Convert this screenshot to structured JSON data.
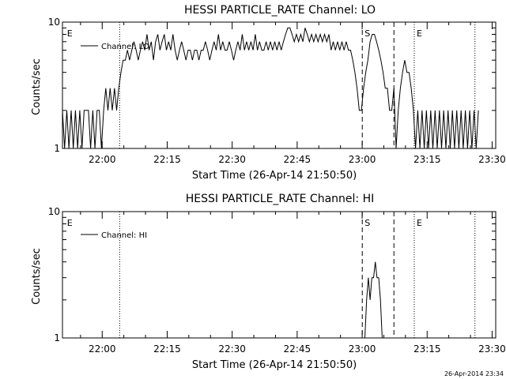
{
  "footer": {
    "timestamp": "26-Apr-2014 23:34"
  },
  "chart_data": [
    {
      "type": "line",
      "title": "HESSI PARTICLE_RATE Channel: LO",
      "xlabel": "Start Time (26-Apr-14 21:50:50)",
      "ylabel": "Counts/sec",
      "y_scale": "log",
      "ylim": [
        1,
        10
      ],
      "y_ticks": [
        {
          "value": 1,
          "label": "1"
        },
        {
          "value": 10,
          "label": "10"
        }
      ],
      "x_unit": "minutes after 21:50:50",
      "xlim": [
        0,
        100
      ],
      "x_ticks": [
        {
          "value": 9.17,
          "label": "22:00"
        },
        {
          "value": 24.17,
          "label": "22:15"
        },
        {
          "value": 39.17,
          "label": "22:30"
        },
        {
          "value": 54.17,
          "label": "22:45"
        },
        {
          "value": 69.17,
          "label": "23:00"
        },
        {
          "value": 84.17,
          "label": "23:15"
        },
        {
          "value": 99.17,
          "label": "23:30"
        }
      ],
      "legend": {
        "label": "Channel: LO",
        "position": "top-left"
      },
      "markers": [
        {
          "x": 0.5,
          "label": "E",
          "style": "none"
        },
        {
          "x": 13.2,
          "label": "",
          "style": "dotted"
        },
        {
          "x": 69.2,
          "label": "S",
          "style": "dashed"
        },
        {
          "x": 76.5,
          "label": "",
          "style": "dashed"
        },
        {
          "x": 81.2,
          "label": "E",
          "style": "dotted"
        },
        {
          "x": 95.2,
          "label": "",
          "style": "dotted"
        }
      ],
      "series": [
        {
          "name": "Channel: LO",
          "points": [
            [
              0,
              2
            ],
            [
              0.5,
              1
            ],
            [
              1,
              2
            ],
            [
              1.5,
              1
            ],
            [
              2,
              2
            ],
            [
              2.5,
              1
            ],
            [
              3,
              2
            ],
            [
              3.5,
              1
            ],
            [
              4,
              2
            ],
            [
              4.5,
              1
            ],
            [
              5,
              2
            ],
            [
              5.5,
              2
            ],
            [
              6,
              2
            ],
            [
              6.5,
              1
            ],
            [
              7,
              2
            ],
            [
              7.5,
              1
            ],
            [
              8,
              2
            ],
            [
              8.5,
              2
            ],
            [
              9,
              1
            ],
            [
              9.5,
              2
            ],
            [
              10,
              3
            ],
            [
              10.5,
              2
            ],
            [
              11,
              3
            ],
            [
              11.5,
              2
            ],
            [
              12,
              3
            ],
            [
              12.5,
              2
            ],
            [
              13,
              3
            ],
            [
              13.5,
              4
            ],
            [
              14,
              5
            ],
            [
              14.5,
              5
            ],
            [
              15,
              6
            ],
            [
              15.5,
              5
            ],
            [
              16,
              6
            ],
            [
              16.5,
              7
            ],
            [
              17,
              6
            ],
            [
              17.5,
              5
            ],
            [
              18,
              6
            ],
            [
              18.5,
              7
            ],
            [
              19,
              6
            ],
            [
              19.5,
              8
            ],
            [
              20,
              6
            ],
            [
              20.5,
              7
            ],
            [
              21,
              5
            ],
            [
              21.5,
              7
            ],
            [
              22,
              8
            ],
            [
              22.5,
              6
            ],
            [
              23,
              7
            ],
            [
              23.5,
              8
            ],
            [
              24,
              6
            ],
            [
              24.5,
              7
            ],
            [
              25,
              6
            ],
            [
              25.5,
              8
            ],
            [
              26,
              6
            ],
            [
              26.5,
              5
            ],
            [
              27,
              6
            ],
            [
              27.5,
              7
            ],
            [
              28,
              6
            ],
            [
              28.5,
              5
            ],
            [
              29,
              6
            ],
            [
              29.5,
              6
            ],
            [
              30,
              5
            ],
            [
              30.5,
              6
            ],
            [
              31,
              6
            ],
            [
              31.5,
              5
            ],
            [
              32,
              6
            ],
            [
              32.5,
              6
            ],
            [
              33,
              7
            ],
            [
              33.5,
              6
            ],
            [
              34,
              5
            ],
            [
              34.5,
              6
            ],
            [
              35,
              7
            ],
            [
              35.5,
              6
            ],
            [
              36,
              8
            ],
            [
              36.5,
              6
            ],
            [
              37,
              7
            ],
            [
              37.5,
              6
            ],
            [
              38,
              6
            ],
            [
              38.5,
              7
            ],
            [
              39,
              6
            ],
            [
              39.5,
              5
            ],
            [
              40,
              6
            ],
            [
              40.5,
              7
            ],
            [
              41,
              6
            ],
            [
              41.5,
              8
            ],
            [
              42,
              6
            ],
            [
              42.5,
              7
            ],
            [
              43,
              6
            ],
            [
              43.5,
              7
            ],
            [
              44,
              6
            ],
            [
              44.5,
              8
            ],
            [
              45,
              6
            ],
            [
              45.5,
              7
            ],
            [
              46,
              6
            ],
            [
              46.5,
              6
            ],
            [
              47,
              7
            ],
            [
              47.5,
              6
            ],
            [
              48,
              7
            ],
            [
              48.5,
              6
            ],
            [
              49,
              7
            ],
            [
              49.5,
              6
            ],
            [
              50,
              7
            ],
            [
              50.5,
              6
            ],
            [
              51,
              7
            ],
            [
              51.5,
              8
            ],
            [
              52,
              9
            ],
            [
              52.5,
              9
            ],
            [
              53,
              8
            ],
            [
              53.5,
              7
            ],
            [
              54,
              8
            ],
            [
              54.5,
              7
            ],
            [
              55,
              8
            ],
            [
              55.5,
              7
            ],
            [
              56,
              9
            ],
            [
              56.5,
              8
            ],
            [
              57,
              7
            ],
            [
              57.5,
              8
            ],
            [
              58,
              7
            ],
            [
              58.5,
              8
            ],
            [
              59,
              7
            ],
            [
              59.5,
              8
            ],
            [
              60,
              7
            ],
            [
              60.5,
              8
            ],
            [
              61,
              7
            ],
            [
              61.5,
              8
            ],
            [
              62,
              6
            ],
            [
              62.5,
              7
            ],
            [
              63,
              6
            ],
            [
              63.5,
              7
            ],
            [
              64,
              6
            ],
            [
              64.5,
              7
            ],
            [
              65,
              6
            ],
            [
              65.5,
              7
            ],
            [
              66,
              6
            ],
            [
              66.5,
              6
            ],
            [
              67,
              5
            ],
            [
              67.5,
              4
            ],
            [
              68,
              3
            ],
            [
              68.5,
              2
            ],
            [
              69,
              2
            ],
            [
              69.5,
              3
            ],
            [
              70,
              4
            ],
            [
              70.5,
              5
            ],
            [
              71,
              7
            ],
            [
              71.5,
              8
            ],
            [
              72,
              8
            ],
            [
              72.5,
              7
            ],
            [
              73,
              6
            ],
            [
              73.5,
              5
            ],
            [
              74,
              4
            ],
            [
              74.5,
              3
            ],
            [
              75,
              3
            ],
            [
              75.5,
              2
            ],
            [
              76,
              2
            ],
            [
              76.5,
              3
            ],
            [
              77,
              1
            ],
            [
              77.5,
              2
            ],
            [
              78,
              3
            ],
            [
              78.5,
              4
            ],
            [
              79,
              5
            ],
            [
              79.5,
              4
            ],
            [
              80,
              4
            ],
            [
              80.5,
              3
            ],
            [
              81,
              2
            ],
            [
              81.5,
              1
            ],
            [
              82,
              2
            ],
            [
              82.5,
              1
            ],
            [
              83,
              2
            ],
            [
              83.5,
              1
            ],
            [
              84,
              2
            ],
            [
              84.5,
              1
            ],
            [
              85,
              2
            ],
            [
              85.5,
              1
            ],
            [
              86,
              2
            ],
            [
              86.5,
              1
            ],
            [
              87,
              2
            ],
            [
              87.5,
              1
            ],
            [
              88,
              2
            ],
            [
              88.5,
              1
            ],
            [
              89,
              2
            ],
            [
              89.5,
              1
            ],
            [
              90,
              2
            ],
            [
              90.5,
              1
            ],
            [
              91,
              2
            ],
            [
              91.5,
              1
            ],
            [
              92,
              2
            ],
            [
              92.5,
              1
            ],
            [
              93,
              2
            ],
            [
              93.5,
              1
            ],
            [
              94,
              2
            ],
            [
              94.5,
              1
            ],
            [
              95,
              2
            ],
            [
              95.5,
              1
            ],
            [
              96,
              2
            ]
          ]
        }
      ]
    },
    {
      "type": "line",
      "title": "HESSI PARTICLE_RATE Channel: HI",
      "xlabel": "Start Time (26-Apr-14 21:50:50)",
      "ylabel": "Counts/sec",
      "y_scale": "log",
      "ylim": [
        1,
        10
      ],
      "y_ticks": [
        {
          "value": 1,
          "label": "1"
        },
        {
          "value": 10,
          "label": "10"
        }
      ],
      "x_unit": "minutes after 21:50:50",
      "xlim": [
        0,
        100
      ],
      "x_ticks": [
        {
          "value": 9.17,
          "label": "22:00"
        },
        {
          "value": 24.17,
          "label": "22:15"
        },
        {
          "value": 39.17,
          "label": "22:30"
        },
        {
          "value": 54.17,
          "label": "22:45"
        },
        {
          "value": 69.17,
          "label": "23:00"
        },
        {
          "value": 84.17,
          "label": "23:15"
        },
        {
          "value": 99.17,
          "label": "23:30"
        }
      ],
      "legend": {
        "label": "Channel: HI",
        "position": "top-left"
      },
      "markers": [
        {
          "x": 0.5,
          "label": "E",
          "style": "none"
        },
        {
          "x": 13.2,
          "label": "",
          "style": "dotted"
        },
        {
          "x": 69.2,
          "label": "S",
          "style": "dashed"
        },
        {
          "x": 76.5,
          "label": "",
          "style": "dashed"
        },
        {
          "x": 81.2,
          "label": "E",
          "style": "dotted"
        },
        {
          "x": 95.2,
          "label": "",
          "style": "dotted"
        }
      ],
      "series": [
        {
          "name": "Channel: HI",
          "points": [
            [
              69.8,
              1
            ],
            [
              70.2,
              2
            ],
            [
              70.6,
              3
            ],
            [
              71,
              2
            ],
            [
              71.4,
              3
            ],
            [
              71.8,
              3
            ],
            [
              72.2,
              4
            ],
            [
              72.6,
              3
            ],
            [
              73,
              3
            ],
            [
              73.4,
              2
            ],
            [
              73.8,
              1
            ]
          ]
        }
      ]
    }
  ]
}
